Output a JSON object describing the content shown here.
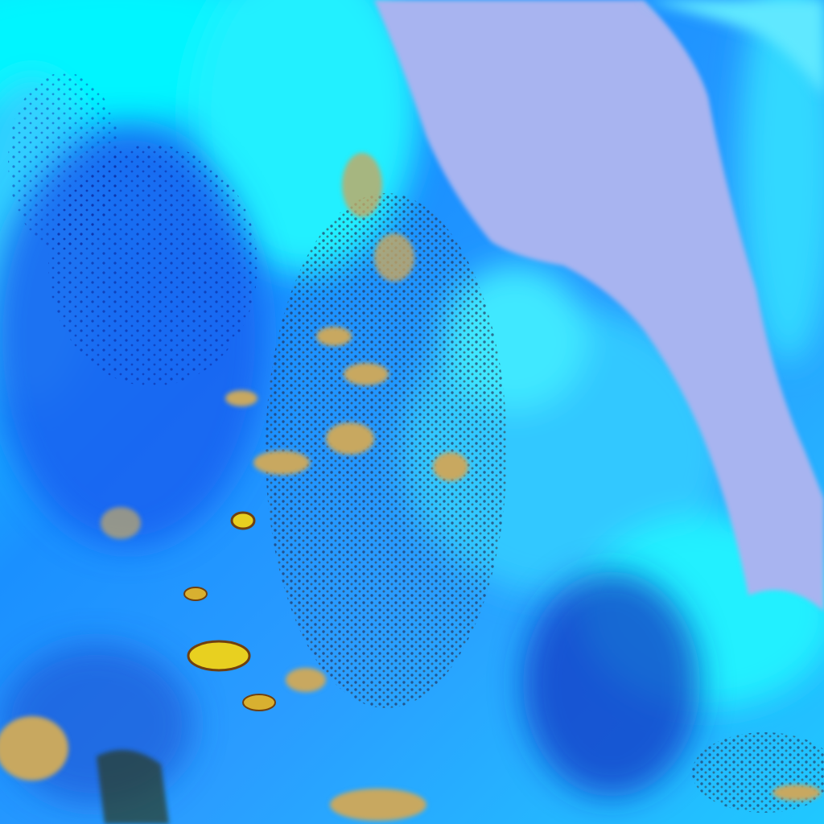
{
  "colors": {
    "cloud_cyan": "#00f5ff",
    "ocean_blue": "#1e8cff",
    "deep_blue": "#1250e0",
    "land_lavender": "#a8b4f0",
    "convective_tan": "#c8a860",
    "storm_yellow": "#e8d020"
  }
}
